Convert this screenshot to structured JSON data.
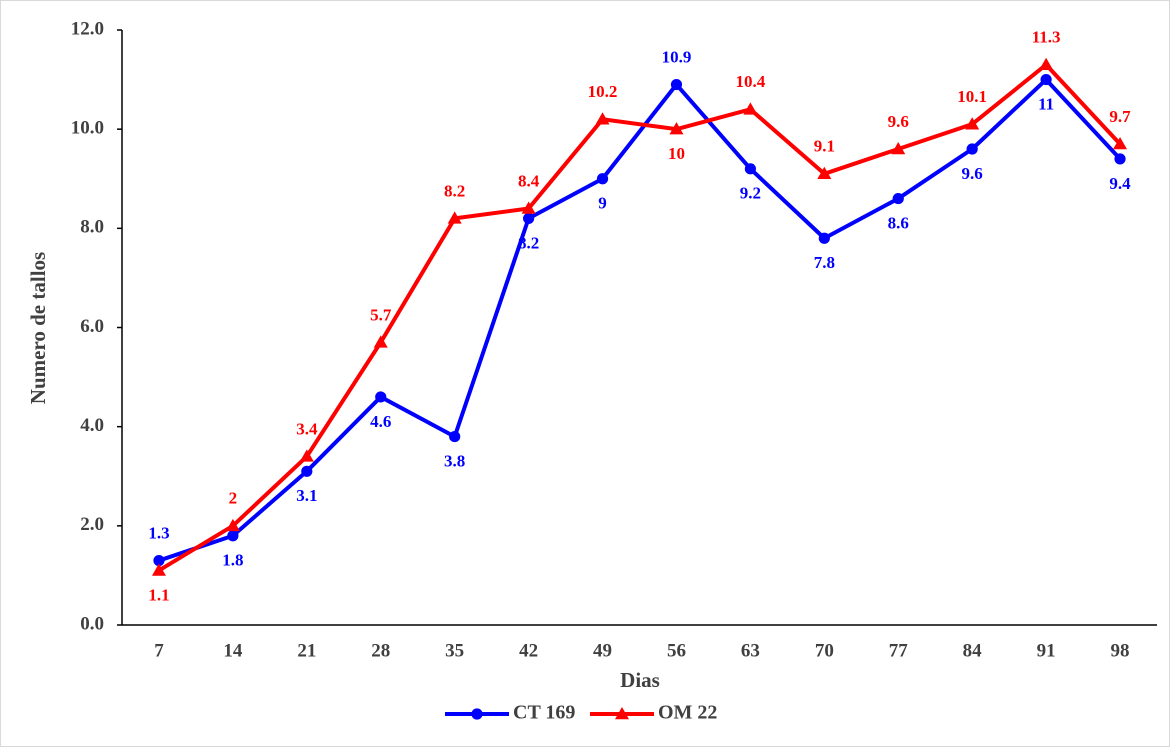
{
  "chart_data": {
    "type": "line",
    "x_label": "Dias",
    "y_label": "Numero de tallos",
    "categories": [
      "7",
      "14",
      "21",
      "28",
      "35",
      "42",
      "49",
      "56",
      "63",
      "70",
      "77",
      "84",
      "91",
      "98"
    ],
    "series": [
      {
        "name": "CT 169",
        "color": "#0000ff",
        "marker": "circle",
        "values": [
          1.3,
          1.8,
          3.1,
          4.6,
          3.8,
          8.2,
          9,
          10.9,
          9.2,
          7.8,
          8.6,
          9.6,
          11,
          9.4
        ]
      },
      {
        "name": "OM 22",
        "color": "#ff0000",
        "marker": "triangle",
        "values": [
          1.1,
          2,
          3.4,
          5.7,
          8.2,
          8.4,
          10.2,
          10,
          10.4,
          9.1,
          9.6,
          10.1,
          11.3,
          9.7
        ]
      }
    ],
    "ylim": [
      0,
      12
    ],
    "yticks": [
      {
        "value": 0,
        "label": "0.0"
      },
      {
        "value": 2,
        "label": "2.0"
      },
      {
        "value": 4,
        "label": "4.0"
      },
      {
        "value": 6,
        "label": "6.0"
      },
      {
        "value": 8,
        "label": "8.0"
      },
      {
        "value": 10,
        "label": "10.0"
      },
      {
        "value": 12,
        "label": "12.0"
      }
    ],
    "grid": false,
    "legend": "bottom"
  }
}
